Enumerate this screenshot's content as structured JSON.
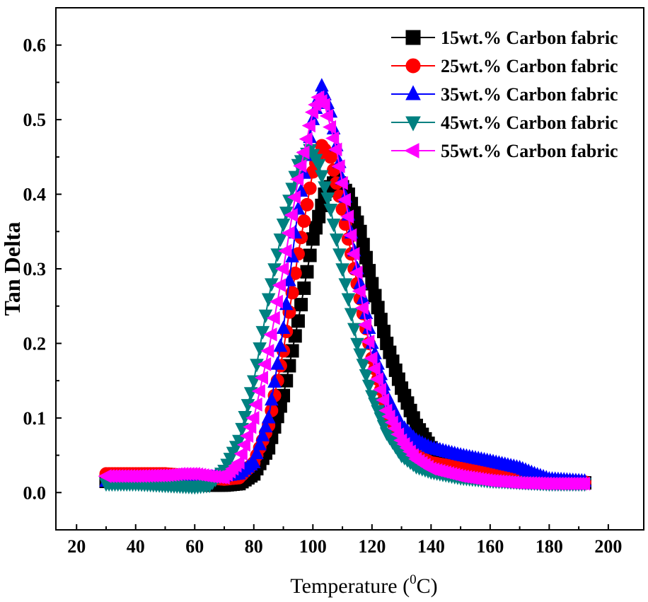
{
  "chart_data": {
    "type": "scatter",
    "title": "",
    "xlabel_prefix": "Temperature (",
    "xlabel_sup": "0",
    "xlabel_suffix": "C)",
    "ylabel": "Tan Delta",
    "xlim": [
      13,
      212
    ],
    "ylim": [
      -0.05,
      0.65
    ],
    "xticks": [
      20,
      40,
      60,
      80,
      100,
      120,
      140,
      160,
      180,
      200
    ],
    "yticks": [
      0.0,
      0.1,
      0.2,
      0.3,
      0.4,
      0.5,
      0.6
    ],
    "ytick_labels": [
      "0.0",
      "0.1",
      "0.2",
      "0.3",
      "0.4",
      "0.5",
      "0.6"
    ],
    "legend_position": "top-right",
    "series": [
      {
        "name": "15wt.% Carbon fabric",
        "color": "#000000",
        "marker": "square",
        "x": [
          30,
          40,
          50,
          60,
          65,
          70,
          75,
          80,
          85,
          90,
          95,
          100,
          104,
          108,
          112,
          116,
          120,
          125,
          130,
          135,
          140,
          145,
          150,
          160,
          170,
          180,
          192
        ],
        "y": [
          0.015,
          0.015,
          0.015,
          0.013,
          0.01,
          0.01,
          0.012,
          0.025,
          0.06,
          0.13,
          0.23,
          0.34,
          0.4,
          0.42,
          0.4,
          0.35,
          0.28,
          0.2,
          0.14,
          0.09,
          0.06,
          0.045,
          0.035,
          0.025,
          0.018,
          0.015,
          0.013
        ]
      },
      {
        "name": "25wt.% Carbon fabric",
        "color": "#ff0000",
        "marker": "circle",
        "x": [
          30,
          40,
          50,
          60,
          65,
          70,
          75,
          80,
          85,
          90,
          95,
          100,
          103,
          106,
          110,
          115,
          120,
          125,
          130,
          135,
          140,
          150,
          160,
          170,
          180,
          192
        ],
        "y": [
          0.025,
          0.025,
          0.025,
          0.022,
          0.02,
          0.018,
          0.02,
          0.04,
          0.09,
          0.19,
          0.32,
          0.43,
          0.465,
          0.45,
          0.38,
          0.28,
          0.18,
          0.11,
          0.07,
          0.05,
          0.04,
          0.033,
          0.028,
          0.022,
          0.016,
          0.014
        ]
      },
      {
        "name": "35wt.% Carbon fabric",
        "color": "#0000ff",
        "marker": "triangle-up",
        "x": [
          30,
          40,
          50,
          60,
          65,
          70,
          75,
          80,
          85,
          90,
          95,
          100,
          103,
          106,
          110,
          115,
          120,
          125,
          130,
          135,
          140,
          145,
          150,
          160,
          170,
          175,
          180,
          192
        ],
        "y": [
          0.015,
          0.017,
          0.02,
          0.02,
          0.02,
          0.022,
          0.025,
          0.04,
          0.1,
          0.22,
          0.38,
          0.5,
          0.545,
          0.51,
          0.42,
          0.3,
          0.2,
          0.13,
          0.09,
          0.07,
          0.06,
          0.055,
          0.05,
          0.042,
          0.033,
          0.025,
          0.018,
          0.015
        ]
      },
      {
        "name": "45wt.% Carbon fabric",
        "color": "#008080",
        "marker": "triangle-down",
        "x": [
          30,
          40,
          50,
          60,
          65,
          70,
          75,
          80,
          85,
          90,
          95,
          99,
          102,
          106,
          110,
          115,
          120,
          125,
          130,
          135,
          140,
          150,
          160,
          170,
          180,
          192
        ],
        "y": [
          0.012,
          0.012,
          0.01,
          0.008,
          0.01,
          0.03,
          0.07,
          0.15,
          0.26,
          0.36,
          0.44,
          0.46,
          0.44,
          0.38,
          0.3,
          0.2,
          0.13,
          0.08,
          0.05,
          0.035,
          0.028,
          0.02,
          0.016,
          0.014,
          0.012,
          0.012
        ]
      },
      {
        "name": "55wt.% Carbon fabric",
        "color": "#ff00ff",
        "marker": "triangle-left",
        "x": [
          30,
          40,
          50,
          55,
          60,
          65,
          70,
          75,
          80,
          85,
          90,
          95,
          100,
          102,
          104,
          108,
          112,
          116,
          120,
          125,
          130,
          135,
          140,
          150,
          160,
          170,
          180,
          192
        ],
        "y": [
          0.022,
          0.022,
          0.023,
          0.025,
          0.025,
          0.022,
          0.02,
          0.04,
          0.1,
          0.19,
          0.3,
          0.42,
          0.51,
          0.53,
          0.52,
          0.46,
          0.37,
          0.27,
          0.18,
          0.11,
          0.07,
          0.045,
          0.032,
          0.022,
          0.016,
          0.013,
          0.012,
          0.012
        ]
      }
    ]
  }
}
